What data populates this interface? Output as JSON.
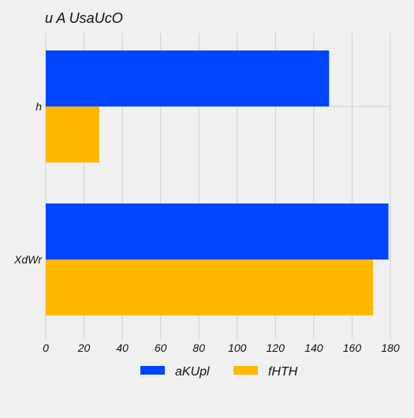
{
  "chart_data": {
    "type": "bar",
    "orientation": "horizontal",
    "title": "u  A UsaUcO",
    "xlabel": "",
    "ylabel": "",
    "categories": [
      "h",
      "XdWr"
    ],
    "series": [
      {
        "name": "aKUpl",
        "values": [
          148,
          179
        ],
        "color": "#0044ff"
      },
      {
        "name": "fHTH",
        "values": [
          28,
          171
        ],
        "color": "#ffb800"
      }
    ],
    "xlim": [
      0,
      180
    ],
    "xticks": [
      0,
      20,
      40,
      60,
      80,
      100,
      120,
      140,
      160,
      180
    ],
    "grid": true,
    "legend_position": "bottom"
  }
}
